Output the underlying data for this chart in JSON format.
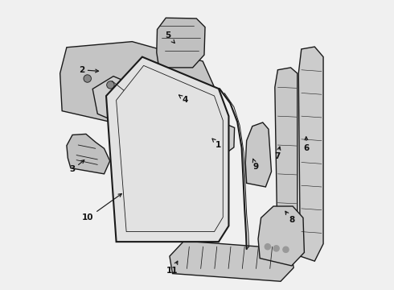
{
  "bg_color": "#f0f0f0",
  "line_color": "#1a1a1a",
  "text_color": "#111111",
  "label_config": {
    "1": {
      "lpos": [
        0.575,
        0.5
      ],
      "apos": [
        0.545,
        0.53
      ]
    },
    "2": {
      "lpos": [
        0.1,
        0.76
      ],
      "apos": [
        0.17,
        0.755
      ]
    },
    "3": {
      "lpos": [
        0.068,
        0.415
      ],
      "apos": [
        0.118,
        0.455
      ]
    },
    "4": {
      "lpos": [
        0.46,
        0.655
      ],
      "apos": [
        0.435,
        0.675
      ]
    },
    "5": {
      "lpos": [
        0.4,
        0.878
      ],
      "apos": [
        0.425,
        0.85
      ]
    },
    "6": {
      "lpos": [
        0.88,
        0.49
      ],
      "apos": [
        0.878,
        0.54
      ]
    },
    "7": {
      "lpos": [
        0.778,
        0.46
      ],
      "apos": [
        0.79,
        0.505
      ]
    },
    "8": {
      "lpos": [
        0.828,
        0.24
      ],
      "apos": [
        0.8,
        0.28
      ]
    },
    "9": {
      "lpos": [
        0.705,
        0.425
      ],
      "apos": [
        0.69,
        0.462
      ]
    },
    "10": {
      "lpos": [
        0.122,
        0.248
      ],
      "apos": [
        0.248,
        0.338
      ]
    },
    "11": {
      "lpos": [
        0.415,
        0.065
      ],
      "apos": [
        0.438,
        0.108
      ]
    }
  }
}
